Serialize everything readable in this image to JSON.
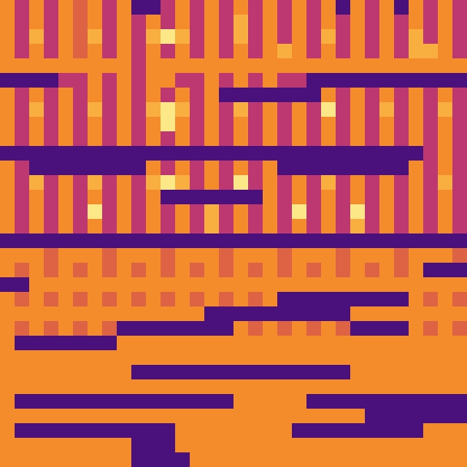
{
  "chart_data": {
    "type": "heatmap",
    "tick_labels": false,
    "cells": [
      [
        7,
        5,
        7,
        5,
        7,
        6,
        7,
        5,
        7,
        3,
        3,
        5,
        7,
        5,
        7,
        5,
        7,
        5,
        7,
        5,
        7,
        5,
        7,
        3,
        7,
        5,
        7,
        3,
        7,
        5,
        7,
        5
      ],
      [
        7,
        5,
        7,
        5,
        7,
        6,
        7,
        5,
        7,
        5,
        7,
        5,
        7,
        5,
        7,
        5,
        8,
        5,
        7,
        5,
        7,
        5,
        7,
        5,
        7,
        5,
        7,
        5,
        7,
        5,
        7,
        5
      ],
      [
        7,
        5,
        8,
        5,
        7,
        6,
        8,
        5,
        7,
        5,
        8,
        9,
        8,
        5,
        7,
        5,
        8,
        5,
        7,
        5,
        7,
        5,
        8,
        5,
        7,
        5,
        7,
        5,
        8,
        5,
        7,
        5
      ],
      [
        7,
        5,
        7,
        5,
        7,
        6,
        7,
        5,
        7,
        5,
        7,
        5,
        7,
        5,
        7,
        5,
        7,
        5,
        7,
        8,
        7,
        5,
        7,
        5,
        7,
        5,
        7,
        5,
        8,
        8,
        7,
        5
      ],
      [
        7,
        7,
        7,
        7,
        7,
        7,
        7,
        7,
        7,
        5,
        7,
        7,
        7,
        7,
        7,
        7,
        7,
        7,
        7,
        7,
        7,
        7,
        7,
        7,
        7,
        7,
        7,
        7,
        7,
        7,
        7,
        7
      ],
      [
        3,
        3,
        3,
        3,
        5,
        5,
        7,
        5,
        7,
        5,
        7,
        7,
        5,
        5,
        7,
        5,
        7,
        5,
        7,
        5,
        5,
        3,
        3,
        3,
        3,
        3,
        3,
        3,
        3,
        3,
        3,
        3
      ],
      [
        7,
        5,
        7,
        5,
        7,
        5,
        7,
        5,
        7,
        5,
        7,
        5,
        7,
        5,
        7,
        3,
        3,
        3,
        3,
        3,
        3,
        3,
        7,
        5,
        7,
        5,
        7,
        5,
        7,
        5,
        7,
        5
      ],
      [
        7,
        5,
        8,
        5,
        7,
        5,
        8,
        5,
        7,
        5,
        8,
        9,
        8,
        5,
        7,
        5,
        8,
        5,
        7,
        5,
        7,
        5,
        9,
        5,
        7,
        5,
        8,
        5,
        7,
        5,
        8,
        5
      ],
      [
        7,
        5,
        7,
        5,
        7,
        5,
        7,
        5,
        7,
        5,
        7,
        9,
        7,
        5,
        7,
        5,
        7,
        5,
        7,
        5,
        7,
        5,
        7,
        5,
        7,
        5,
        7,
        5,
        7,
        5,
        7,
        5
      ],
      [
        7,
        5,
        7,
        5,
        7,
        5,
        7,
        5,
        7,
        5,
        7,
        5,
        7,
        5,
        7,
        5,
        7,
        5,
        7,
        5,
        7,
        5,
        7,
        5,
        7,
        5,
        7,
        5,
        7,
        5,
        7,
        5
      ],
      [
        3,
        3,
        3,
        3,
        3,
        3,
        3,
        3,
        3,
        3,
        3,
        3,
        3,
        3,
        3,
        3,
        3,
        3,
        3,
        3,
        3,
        3,
        3,
        3,
        3,
        3,
        3,
        3,
        3,
        5,
        7,
        5
      ],
      [
        7,
        5,
        3,
        3,
        3,
        3,
        3,
        3,
        3,
        3,
        7,
        5,
        7,
        5,
        7,
        5,
        7,
        5,
        7,
        3,
        3,
        3,
        3,
        3,
        3,
        3,
        3,
        3,
        7,
        5,
        7,
        5
      ],
      [
        7,
        5,
        8,
        5,
        7,
        5,
        8,
        5,
        7,
        5,
        8,
        9,
        8,
        5,
        7,
        5,
        9,
        5,
        7,
        5,
        7,
        5,
        8,
        5,
        7,
        5,
        7,
        5,
        7,
        5,
        8,
        5
      ],
      [
        7,
        5,
        7,
        5,
        7,
        5,
        7,
        5,
        7,
        5,
        7,
        3,
        3,
        3,
        3,
        3,
        3,
        3,
        7,
        5,
        7,
        5,
        7,
        5,
        7,
        5,
        7,
        5,
        7,
        5,
        7,
        5
      ],
      [
        7,
        5,
        7,
        5,
        7,
        5,
        9,
        5,
        7,
        5,
        7,
        5,
        7,
        5,
        8,
        5,
        7,
        5,
        7,
        5,
        9,
        5,
        7,
        5,
        9,
        5,
        7,
        5,
        7,
        5,
        7,
        5
      ],
      [
        7,
        5,
        7,
        5,
        7,
        5,
        7,
        5,
        7,
        5,
        7,
        5,
        7,
        5,
        8,
        5,
        7,
        5,
        7,
        5,
        7,
        5,
        7,
        5,
        8,
        5,
        7,
        5,
        7,
        5,
        7,
        5
      ],
      [
        3,
        3,
        3,
        3,
        3,
        3,
        3,
        3,
        3,
        3,
        3,
        3,
        3,
        3,
        3,
        3,
        3,
        3,
        3,
        3,
        3,
        3,
        3,
        3,
        3,
        3,
        3,
        3,
        3,
        3,
        3,
        3
      ],
      [
        7,
        7,
        7,
        6,
        7,
        7,
        7,
        6,
        7,
        7,
        7,
        6,
        7,
        7,
        7,
        6,
        7,
        7,
        7,
        6,
        7,
        7,
        7,
        6,
        7,
        7,
        7,
        6,
        7,
        7,
        7,
        6
      ],
      [
        7,
        6,
        7,
        6,
        7,
        6,
        7,
        6,
        7,
        6,
        7,
        6,
        7,
        6,
        7,
        6,
        7,
        6,
        7,
        6,
        7,
        6,
        7,
        6,
        7,
        6,
        7,
        6,
        7,
        3,
        3,
        3
      ],
      [
        3,
        3,
        7,
        7,
        7,
        7,
        7,
        7,
        7,
        7,
        7,
        7,
        7,
        7,
        7,
        7,
        7,
        7,
        7,
        7,
        7,
        7,
        7,
        7,
        7,
        7,
        7,
        7,
        7,
        7,
        7,
        7
      ],
      [
        7,
        6,
        7,
        6,
        7,
        6,
        7,
        6,
        7,
        6,
        7,
        6,
        7,
        6,
        7,
        6,
        7,
        6,
        7,
        3,
        3,
        3,
        3,
        3,
        3,
        3,
        3,
        3,
        7,
        6,
        7,
        6
      ],
      [
        7,
        7,
        7,
        7,
        7,
        7,
        7,
        7,
        7,
        7,
        7,
        7,
        7,
        7,
        3,
        3,
        3,
        3,
        3,
        3,
        3,
        3,
        3,
        3,
        7,
        7,
        7,
        7,
        7,
        7,
        7,
        7
      ],
      [
        7,
        6,
        7,
        6,
        7,
        6,
        7,
        6,
        3,
        3,
        3,
        3,
        3,
        3,
        3,
        3,
        7,
        6,
        7,
        6,
        7,
        6,
        7,
        6,
        3,
        3,
        3,
        3,
        7,
        6,
        7,
        6
      ],
      [
        7,
        3,
        3,
        3,
        3,
        3,
        3,
        3,
        7,
        7,
        7,
        7,
        7,
        7,
        7,
        7,
        7,
        7,
        7,
        7,
        7,
        7,
        7,
        7,
        7,
        7,
        7,
        7,
        7,
        7,
        7,
        7
      ],
      [
        7,
        7,
        7,
        7,
        7,
        7,
        7,
        7,
        7,
        7,
        7,
        7,
        7,
        7,
        7,
        7,
        7,
        7,
        7,
        7,
        7,
        7,
        7,
        7,
        7,
        7,
        7,
        7,
        7,
        7,
        7,
        7
      ],
      [
        7,
        7,
        7,
        7,
        7,
        7,
        7,
        7,
        7,
        3,
        3,
        3,
        3,
        3,
        3,
        3,
        3,
        3,
        3,
        3,
        3,
        3,
        3,
        3,
        7,
        7,
        7,
        7,
        7,
        7,
        7,
        7
      ],
      [
        7,
        7,
        7,
        7,
        7,
        7,
        7,
        7,
        7,
        7,
        7,
        7,
        7,
        7,
        7,
        7,
        7,
        7,
        7,
        7,
        7,
        7,
        7,
        7,
        7,
        7,
        7,
        7,
        7,
        7,
        7,
        7
      ],
      [
        7,
        3,
        3,
        3,
        3,
        3,
        3,
        3,
        3,
        3,
        3,
        3,
        3,
        3,
        3,
        3,
        7,
        7,
        7,
        7,
        7,
        3,
        3,
        3,
        3,
        3,
        3,
        3,
        3,
        3,
        3,
        3
      ],
      [
        7,
        7,
        7,
        7,
        7,
        7,
        7,
        7,
        7,
        7,
        7,
        7,
        7,
        7,
        7,
        7,
        7,
        7,
        7,
        7,
        7,
        7,
        7,
        7,
        7,
        3,
        3,
        3,
        3,
        3,
        3,
        3
      ],
      [
        7,
        3,
        3,
        3,
        3,
        3,
        3,
        3,
        3,
        3,
        3,
        3,
        7,
        7,
        7,
        7,
        7,
        7,
        7,
        7,
        3,
        3,
        3,
        3,
        3,
        3,
        3,
        3,
        3,
        7,
        7,
        7
      ],
      [
        7,
        7,
        7,
        7,
        7,
        7,
        7,
        7,
        7,
        3,
        3,
        3,
        7,
        7,
        7,
        7,
        7,
        7,
        7,
        7,
        7,
        7,
        7,
        7,
        7,
        7,
        7,
        7,
        7,
        7,
        7,
        7
      ],
      [
        7,
        7,
        7,
        7,
        7,
        7,
        7,
        7,
        7,
        3,
        3,
        3,
        3,
        7,
        7,
        7,
        7,
        7,
        7,
        7,
        7,
        7,
        7,
        7,
        7,
        7,
        7,
        7,
        7,
        7,
        7,
        7
      ]
    ]
  }
}
